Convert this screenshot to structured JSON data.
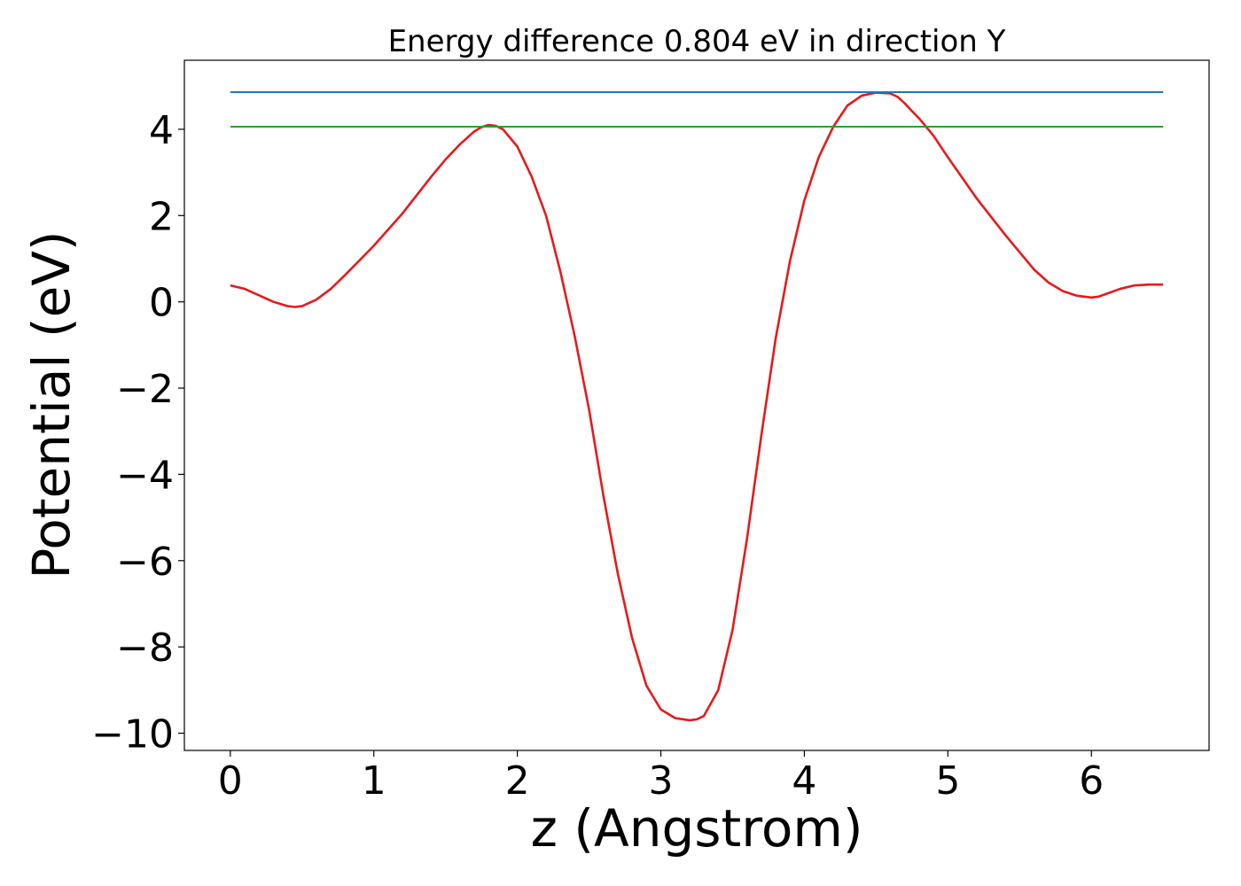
{
  "chart_data": {
    "type": "line",
    "title": "Energy difference 0.804 eV in direction Y",
    "xlabel": "z (Angstrom)",
    "ylabel": "Potential (eV)",
    "xlim": [
      -0.32,
      6.82
    ],
    "ylim": [
      -10.4,
      5.6
    ],
    "xticks": [
      0,
      1,
      2,
      3,
      4,
      5,
      6
    ],
    "yticks": [
      4,
      2,
      0,
      -2,
      -4,
      -6,
      -8,
      -10
    ],
    "grid": false,
    "legend": "none",
    "series": [
      {
        "color": "#e41a1c",
        "x": [
          0.0,
          0.1,
          0.2,
          0.3,
          0.4,
          0.45,
          0.5,
          0.6,
          0.7,
          0.8,
          1.0,
          1.2,
          1.4,
          1.5,
          1.6,
          1.7,
          1.75,
          1.8,
          1.85,
          1.9,
          2.0,
          2.1,
          2.2,
          2.3,
          2.4,
          2.5,
          2.6,
          2.7,
          2.8,
          2.9,
          3.0,
          3.1,
          3.2,
          3.25,
          3.3,
          3.4,
          3.5,
          3.6,
          3.7,
          3.8,
          3.9,
          4.0,
          4.1,
          4.2,
          4.3,
          4.4,
          4.5,
          4.6,
          4.65,
          4.7,
          4.75,
          4.8,
          4.9,
          5.0,
          5.2,
          5.4,
          5.6,
          5.7,
          5.8,
          5.9,
          6.0,
          6.05,
          6.1,
          6.2,
          6.3,
          6.4,
          6.5
        ],
        "y": [
          0.38,
          0.3,
          0.15,
          0.0,
          -0.1,
          -0.12,
          -0.1,
          0.05,
          0.3,
          0.62,
          1.3,
          2.05,
          2.9,
          3.3,
          3.65,
          3.95,
          4.05,
          4.1,
          4.08,
          4.0,
          3.6,
          2.9,
          2.0,
          0.7,
          -0.8,
          -2.5,
          -4.5,
          -6.3,
          -7.8,
          -8.9,
          -9.45,
          -9.65,
          -9.7,
          -9.68,
          -9.6,
          -9.0,
          -7.6,
          -5.5,
          -3.1,
          -0.85,
          0.95,
          2.35,
          3.35,
          4.05,
          4.55,
          4.78,
          4.85,
          4.83,
          4.75,
          4.6,
          4.42,
          4.25,
          3.85,
          3.35,
          2.4,
          1.55,
          0.75,
          0.45,
          0.25,
          0.14,
          0.1,
          0.12,
          0.18,
          0.3,
          0.38,
          0.4,
          0.4
        ]
      },
      {
        "color": "#1f77b4",
        "x": [
          0.0,
          6.5
        ],
        "y": [
          4.86,
          4.86
        ]
      },
      {
        "color": "#2ca02c",
        "x": [
          0.0,
          6.5
        ],
        "y": [
          4.06,
          4.06
        ]
      }
    ]
  }
}
